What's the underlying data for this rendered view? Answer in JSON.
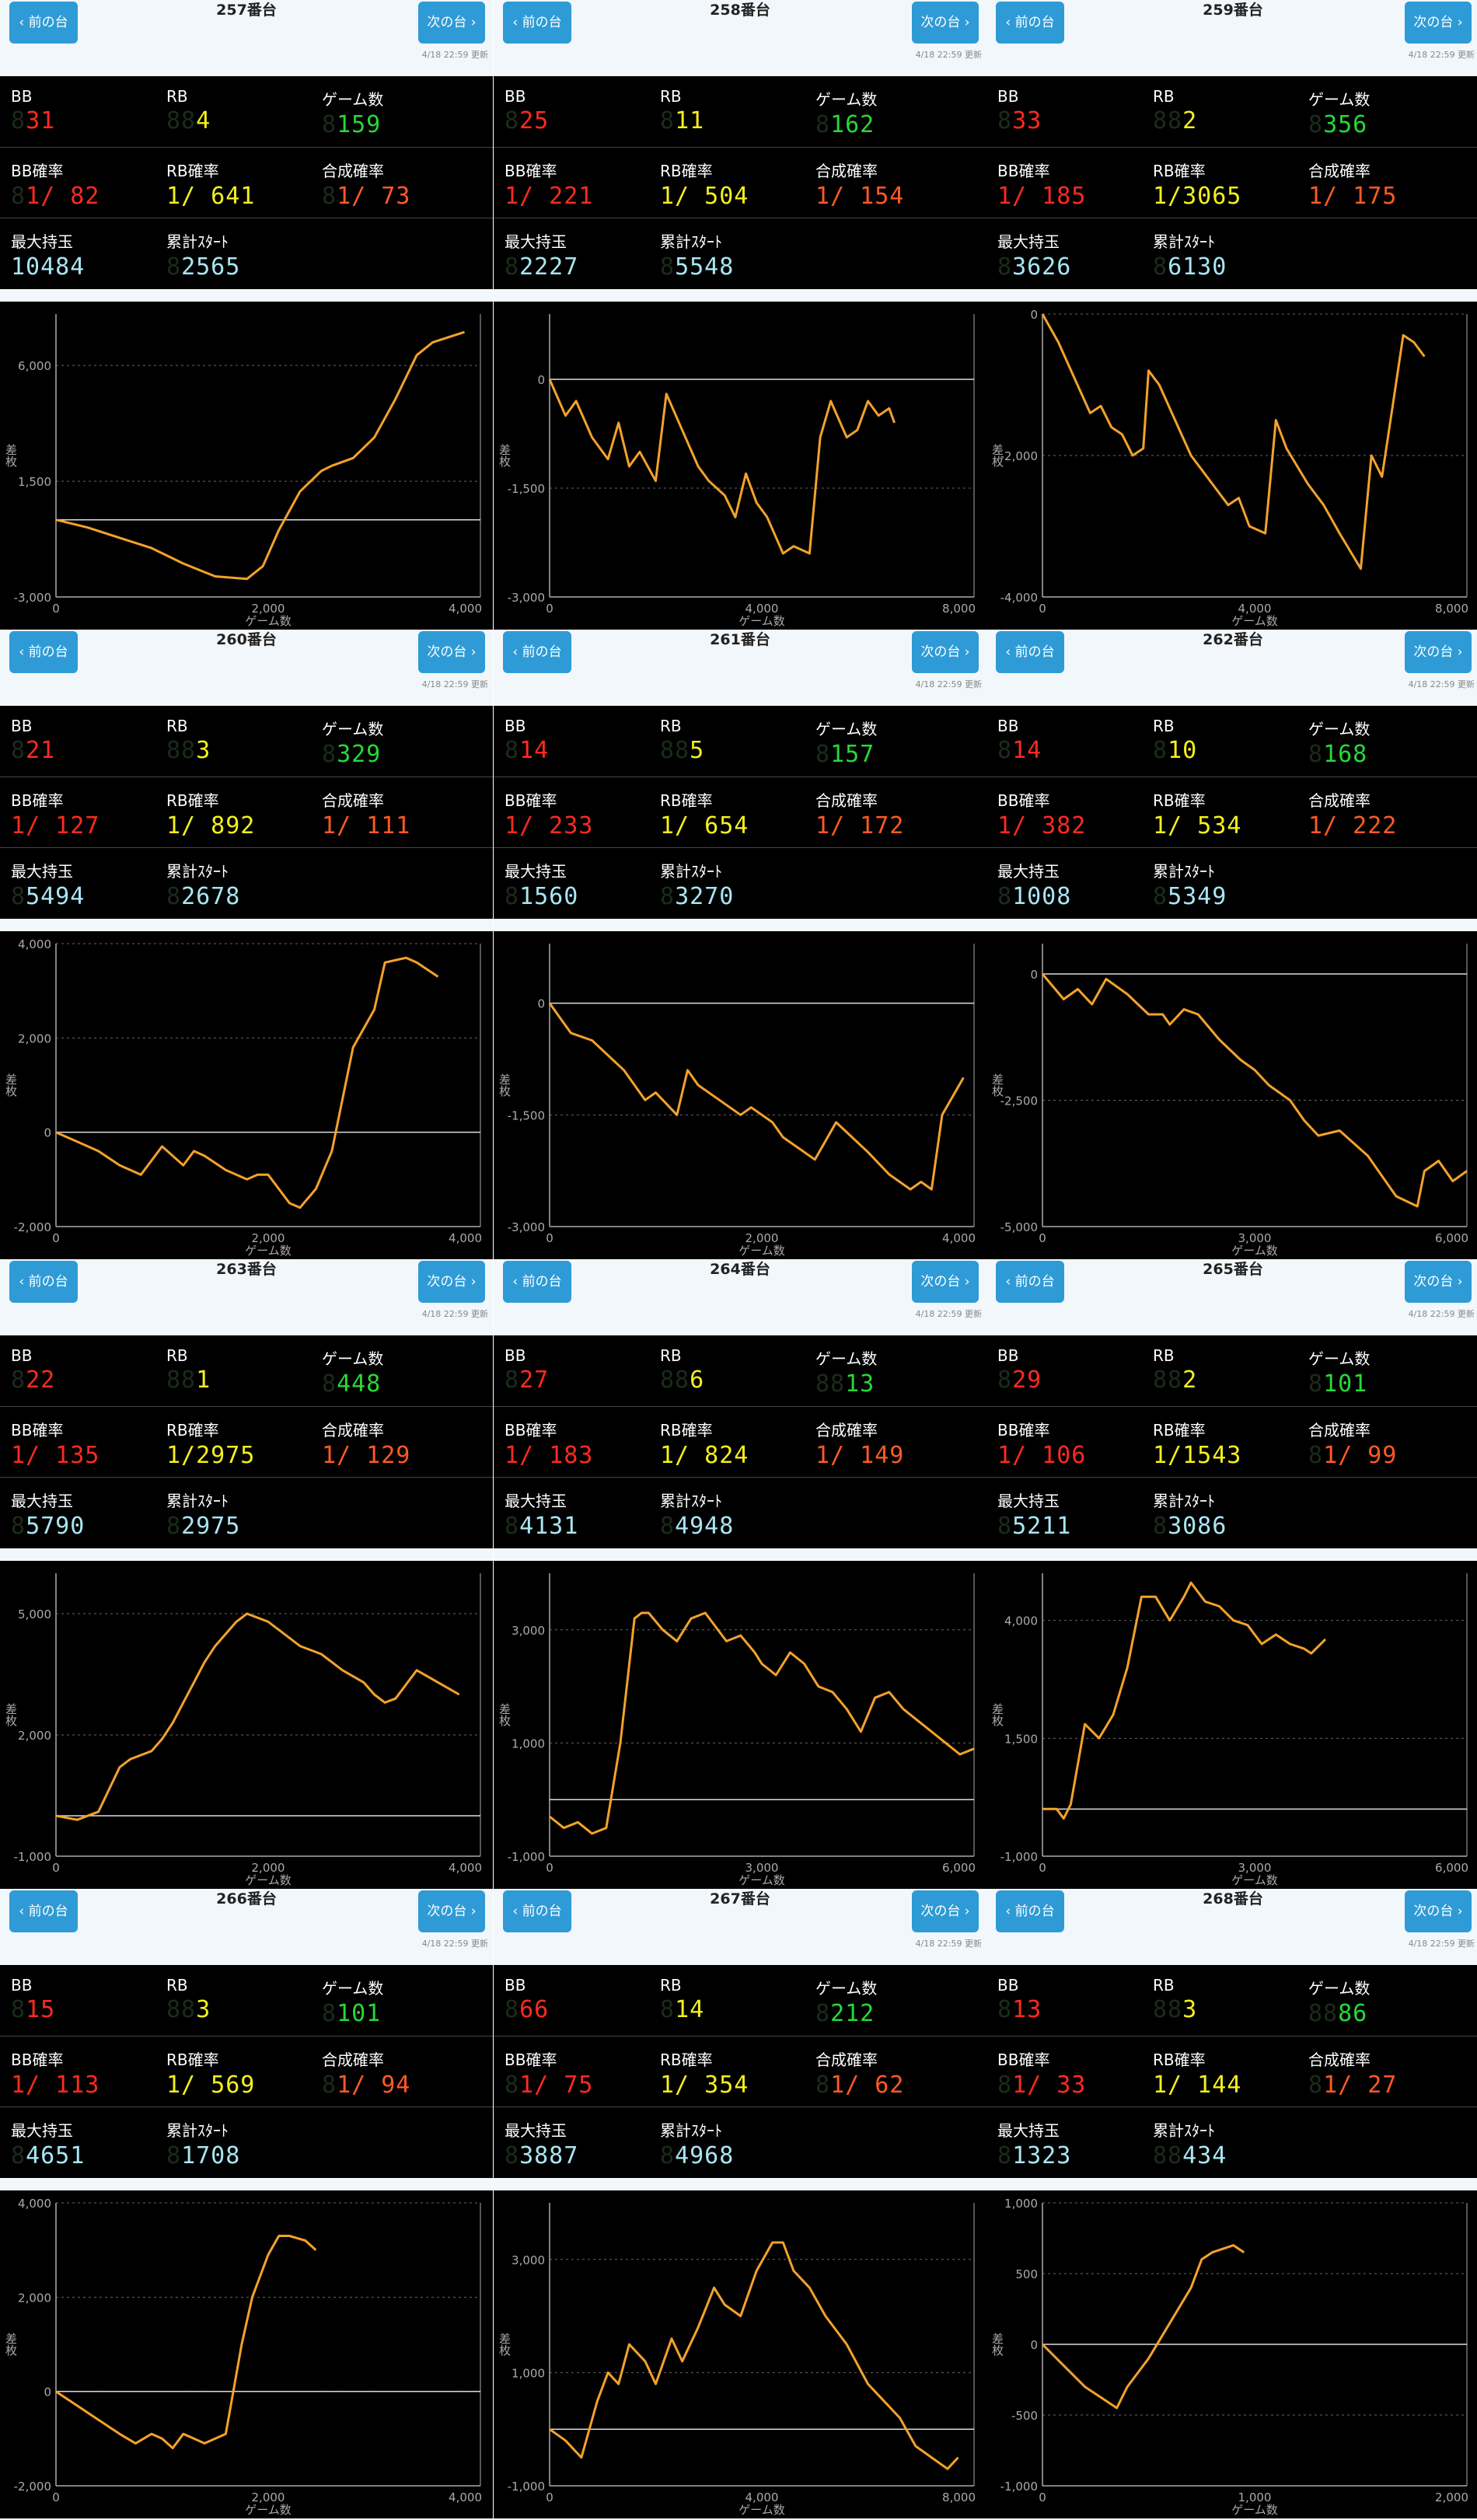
{
  "labels": {
    "prev": "‹ 前の台",
    "next": "次の台 ›",
    "bb": "BB",
    "rb": "RB",
    "games": "ゲーム数",
    "bb_rate": "BB確率",
    "rb_rate": "RB確率",
    "total_rate": "合成確率",
    "max_hold": "最大持玉",
    "total_start": "累計ｽﾀｰﾄ",
    "y_axis": "差枚",
    "x_axis": "ゲーム数"
  },
  "colors": {
    "bb": "#ff2a1f",
    "rb": "#f4f01c",
    "games": "#27d838",
    "total_rate": "#ff5a24",
    "counter": "#a8e6f2",
    "line": "#f3a22b",
    "button": "#2e9bd6"
  },
  "machines": [
    {
      "title": "257番台",
      "updated": "4/18 22:59 更新",
      "bb": "31",
      "rb": "4",
      "games": "159",
      "bb_rate": "1/ 82",
      "rb_rate": "1/ 641",
      "total_rate": "1/ 73",
      "max_hold": "10484",
      "total_start": "2565"
    },
    {
      "title": "258番台",
      "updated": "4/18 22:59 更新",
      "bb": "25",
      "rb": "11",
      "games": "162",
      "bb_rate": "1/ 221",
      "rb_rate": "1/ 504",
      "total_rate": "1/ 154",
      "max_hold": "2227",
      "total_start": "5548"
    },
    {
      "title": "259番台",
      "updated": "4/18 22:59 更新",
      "bb": "33",
      "rb": "2",
      "games": "356",
      "bb_rate": "1/ 185",
      "rb_rate": "1/3065",
      "total_rate": "1/ 175",
      "max_hold": "3626",
      "total_start": "6130"
    },
    {
      "title": "260番台",
      "updated": "4/18 22:59 更新",
      "bb": "21",
      "rb": "3",
      "games": "329",
      "bb_rate": "1/ 127",
      "rb_rate": "1/ 892",
      "total_rate": "1/ 111",
      "max_hold": "5494",
      "total_start": "2678"
    },
    {
      "title": "261番台",
      "updated": "4/18 22:59 更新",
      "bb": "14",
      "rb": "5",
      "games": "157",
      "bb_rate": "1/ 233",
      "rb_rate": "1/ 654",
      "total_rate": "1/ 172",
      "max_hold": "1560",
      "total_start": "3270"
    },
    {
      "title": "262番台",
      "updated": "4/18 22:59 更新",
      "bb": "14",
      "rb": "10",
      "games": "168",
      "bb_rate": "1/ 382",
      "rb_rate": "1/ 534",
      "total_rate": "1/ 222",
      "max_hold": "1008",
      "total_start": "5349"
    },
    {
      "title": "263番台",
      "updated": "4/18 22:59 更新",
      "bb": "22",
      "rb": "1",
      "games": "448",
      "bb_rate": "1/ 135",
      "rb_rate": "1/2975",
      "total_rate": "1/ 129",
      "max_hold": "5790",
      "total_start": "2975"
    },
    {
      "title": "264番台",
      "updated": "4/18 22:59 更新",
      "bb": "27",
      "rb": "6",
      "games": "13",
      "bb_rate": "1/ 183",
      "rb_rate": "1/ 824",
      "total_rate": "1/ 149",
      "max_hold": "4131",
      "total_start": "4948"
    },
    {
      "title": "265番台",
      "updated": "4/18 22:59 更新",
      "bb": "29",
      "rb": "2",
      "games": "101",
      "bb_rate": "1/ 106",
      "rb_rate": "1/1543",
      "total_rate": "1/ 99",
      "max_hold": "5211",
      "total_start": "3086"
    },
    {
      "title": "266番台",
      "updated": "4/18 22:59 更新",
      "bb": "15",
      "rb": "3",
      "games": "101",
      "bb_rate": "1/ 113",
      "rb_rate": "1/ 569",
      "total_rate": "1/ 94",
      "max_hold": "4651",
      "total_start": "1708"
    },
    {
      "title": "267番台",
      "updated": "4/18 22:59 更新",
      "bb": "66",
      "rb": "14",
      "games": "212",
      "bb_rate": "1/ 75",
      "rb_rate": "1/ 354",
      "total_rate": "1/ 62",
      "max_hold": "3887",
      "total_start": "4968"
    },
    {
      "title": "268番台",
      "updated": "4/18 22:59 更新",
      "bb": "13",
      "rb": "3",
      "games": "86",
      "bb_rate": "1/ 33",
      "rb_rate": "1/ 144",
      "total_rate": "1/ 27",
      "max_hold": "1323",
      "total_start": "434"
    }
  ],
  "chart_data": [
    {
      "type": "line",
      "xlim": [
        0,
        4000
      ],
      "ylim": [
        -3000,
        8000
      ],
      "xticks": [
        0,
        2000,
        4000
      ],
      "yticks": [
        -3000,
        1500,
        6000
      ],
      "x": [
        0,
        300,
        600,
        900,
        1200,
        1500,
        1800,
        1950,
        2100,
        2300,
        2500,
        2600,
        2800,
        3000,
        3200,
        3400,
        3550,
        3700,
        3850
      ],
      "y": [
        0,
        -300,
        -700,
        -1100,
        -1700,
        -2200,
        -2300,
        -1800,
        -400,
        1100,
        1900,
        2100,
        2400,
        3200,
        4700,
        6400,
        6900,
        7100,
        7300
      ]
    },
    {
      "type": "line",
      "xlim": [
        0,
        8000
      ],
      "ylim": [
        -3000,
        900
      ],
      "xticks": [
        0,
        4000,
        8000
      ],
      "yticks": [
        -3000,
        -1500,
        0
      ],
      "x": [
        0,
        300,
        500,
        800,
        1100,
        1300,
        1500,
        1700,
        2000,
        2200,
        2500,
        2800,
        3000,
        3300,
        3500,
        3700,
        3900,
        4100,
        4400,
        4600,
        4900,
        5100,
        5300,
        5600,
        5800,
        6000,
        6200,
        6400,
        6500
      ],
      "y": [
        0,
        -500,
        -300,
        -800,
        -1100,
        -600,
        -1200,
        -1000,
        -1400,
        -200,
        -700,
        -1200,
        -1400,
        -1600,
        -1900,
        -1300,
        -1700,
        -1900,
        -2400,
        -2300,
        -2400,
        -800,
        -300,
        -800,
        -700,
        -300,
        -500,
        -400,
        -600
      ]
    },
    {
      "type": "line",
      "xlim": [
        0,
        8000
      ],
      "ylim": [
        -4000,
        0
      ],
      "xticks": [
        0,
        4000,
        8000
      ],
      "yticks": [
        -4000,
        -2000,
        0
      ],
      "x": [
        0,
        300,
        600,
        900,
        1100,
        1300,
        1500,
        1700,
        1900,
        2000,
        2200,
        2500,
        2800,
        3000,
        3200,
        3500,
        3700,
        3900,
        4200,
        4400,
        4600,
        5000,
        5300,
        5600,
        6000,
        6200,
        6400,
        6600,
        6800,
        7000,
        7200
      ],
      "y": [
        0,
        -400,
        -900,
        -1400,
        -1300,
        -1600,
        -1700,
        -2000,
        -1900,
        -800,
        -1000,
        -1500,
        -2000,
        -2200,
        -2400,
        -2700,
        -2600,
        -3000,
        -3100,
        -1500,
        -1900,
        -2400,
        -2700,
        -3100,
        -3600,
        -2000,
        -2300,
        -1300,
        -300,
        -400,
        -600
      ]
    },
    {
      "type": "line",
      "xlim": [
        0,
        4000
      ],
      "ylim": [
        -2000,
        4000
      ],
      "xticks": [
        0,
        2000,
        4000
      ],
      "yticks": [
        -2000,
        0,
        2000,
        4000
      ],
      "x": [
        0,
        200,
        400,
        600,
        800,
        900,
        1000,
        1200,
        1300,
        1400,
        1600,
        1800,
        1900,
        2000,
        2200,
        2300,
        2450,
        2600,
        2800,
        3000,
        3100,
        3300,
        3400,
        3600
      ],
      "y": [
        0,
        -200,
        -400,
        -700,
        -900,
        -600,
        -300,
        -700,
        -400,
        -500,
        -800,
        -1000,
        -900,
        -900,
        -1500,
        -1600,
        -1200,
        -400,
        1800,
        2600,
        3600,
        3700,
        3600,
        3300
      ]
    },
    {
      "type": "line",
      "xlim": [
        0,
        4000
      ],
      "ylim": [
        -3000,
        800
      ],
      "xticks": [
        0,
        2000,
        4000
      ],
      "yticks": [
        -3000,
        -1500,
        0
      ],
      "x": [
        0,
        200,
        400,
        700,
        900,
        1000,
        1200,
        1300,
        1400,
        1600,
        1800,
        1900,
        2100,
        2200,
        2300,
        2500,
        2700,
        3000,
        3200,
        3400,
        3500,
        3600,
        3700,
        3900
      ],
      "y": [
        0,
        -400,
        -500,
        -900,
        -1300,
        -1200,
        -1500,
        -900,
        -1100,
        -1300,
        -1500,
        -1400,
        -1600,
        -1800,
        -1900,
        -2100,
        -1600,
        -2000,
        -2300,
        -2500,
        -2400,
        -2500,
        -1500,
        -1000
      ]
    },
    {
      "type": "line",
      "xlim": [
        0,
        6000
      ],
      "ylim": [
        -5000,
        600
      ],
      "xticks": [
        0,
        3000,
        6000
      ],
      "yticks": [
        -5000,
        -2500,
        0
      ],
      "x": [
        0,
        300,
        500,
        700,
        900,
        1000,
        1200,
        1500,
        1700,
        1800,
        2000,
        2200,
        2500,
        2800,
        3000,
        3200,
        3500,
        3700,
        3900,
        4200,
        4600,
        5000,
        5300,
        5400,
        5600,
        5800,
        6000
      ],
      "y": [
        0,
        -500,
        -300,
        -600,
        -100,
        -200,
        -400,
        -800,
        -800,
        -1000,
        -700,
        -800,
        -1300,
        -1700,
        -1900,
        -2200,
        -2500,
        -2900,
        -3200,
        -3100,
        -3600,
        -4400,
        -4600,
        -3900,
        -3700,
        -4100,
        -3900
      ]
    },
    {
      "type": "line",
      "xlim": [
        0,
        4000
      ],
      "ylim": [
        -1000,
        6000
      ],
      "xticks": [
        0,
        2000,
        4000
      ],
      "yticks": [
        -1000,
        2000,
        5000
      ],
      "x": [
        0,
        200,
        400,
        600,
        700,
        800,
        900,
        1000,
        1100,
        1200,
        1300,
        1400,
        1500,
        1600,
        1700,
        1800,
        1900,
        2000,
        2100,
        2200,
        2300,
        2500,
        2700,
        2900,
        3000,
        3100,
        3200,
        3400,
        3600,
        3800
      ],
      "y": [
        0,
        -100,
        100,
        1200,
        1400,
        1500,
        1600,
        1900,
        2300,
        2800,
        3300,
        3800,
        4200,
        4500,
        4800,
        5000,
        4900,
        4800,
        4600,
        4400,
        4200,
        4000,
        3600,
        3300,
        3000,
        2800,
        2900,
        3600,
        3300,
        3000
      ]
    },
    {
      "type": "line",
      "xlim": [
        0,
        6000
      ],
      "ylim": [
        -1000,
        4000
      ],
      "xticks": [
        0,
        3000,
        6000
      ],
      "yticks": [
        -1000,
        1000,
        3000
      ],
      "x": [
        0,
        200,
        400,
        600,
        800,
        1000,
        1200,
        1300,
        1400,
        1600,
        1800,
        2000,
        2200,
        2500,
        2700,
        2900,
        3000,
        3200,
        3400,
        3600,
        3800,
        4000,
        4200,
        4400,
        4600,
        4800,
        5000,
        5200,
        5400,
        5600,
        5800,
        6000
      ],
      "y": [
        -300,
        -500,
        -400,
        -600,
        -500,
        1000,
        3200,
        3300,
        3300,
        3000,
        2800,
        3200,
        3300,
        2800,
        2900,
        2600,
        2400,
        2200,
        2600,
        2400,
        2000,
        1900,
        1600,
        1200,
        1800,
        1900,
        1600,
        1400,
        1200,
        1000,
        800,
        900
      ]
    },
    {
      "type": "line",
      "xlim": [
        0,
        6000
      ],
      "ylim": [
        -1000,
        5000
      ],
      "xticks": [
        0,
        3000,
        6000
      ],
      "yticks": [
        -1000,
        1500,
        4000
      ],
      "x": [
        0,
        200,
        300,
        400,
        600,
        800,
        1000,
        1200,
        1400,
        1600,
        1800,
        2000,
        2100,
        2300,
        2500,
        2700,
        2900,
        3100,
        3300,
        3500,
        3700,
        3800,
        4000
      ],
      "y": [
        0,
        0,
        -200,
        100,
        1800,
        1500,
        2000,
        3000,
        4500,
        4500,
        4000,
        4500,
        4800,
        4400,
        4300,
        4000,
        3900,
        3500,
        3700,
        3500,
        3400,
        3300,
        3600
      ]
    },
    {
      "type": "line",
      "xlim": [
        0,
        4000
      ],
      "ylim": [
        -2000,
        4000
      ],
      "xticks": [
        0,
        2000,
        4000
      ],
      "yticks": [
        -2000,
        0,
        2000,
        4000
      ],
      "x": [
        0,
        200,
        400,
        600,
        750,
        900,
        1000,
        1100,
        1200,
        1300,
        1400,
        1600,
        1750,
        1850,
        2000,
        2100,
        2200,
        2350,
        2450
      ],
      "y": [
        0,
        -300,
        -600,
        -900,
        -1100,
        -900,
        -1000,
        -1200,
        -900,
        -1000,
        -1100,
        -900,
        1000,
        2000,
        2900,
        3300,
        3300,
        3200,
        3000
      ]
    },
    {
      "type": "line",
      "xlim": [
        0,
        8000
      ],
      "ylim": [
        -1000,
        4000
      ],
      "xticks": [
        0,
        4000,
        8000
      ],
      "yticks": [
        -1000,
        1000,
        3000
      ],
      "x": [
        0,
        300,
        600,
        900,
        1100,
        1300,
        1500,
        1800,
        2000,
        2300,
        2500,
        2800,
        3100,
        3300,
        3600,
        3900,
        4200,
        4400,
        4600,
        4900,
        5200,
        5600,
        6000,
        6300,
        6600,
        6900,
        7200,
        7500,
        7700
      ],
      "y": [
        0,
        -200,
        -500,
        500,
        1000,
        800,
        1500,
        1200,
        800,
        1600,
        1200,
        1800,
        2500,
        2200,
        2000,
        2800,
        3300,
        3300,
        2800,
        2500,
        2000,
        1500,
        800,
        500,
        200,
        -300,
        -500,
        -700,
        -500
      ]
    },
    {
      "type": "line",
      "xlim": [
        0,
        2000
      ],
      "ylim": [
        -1000,
        1000
      ],
      "xticks": [
        0,
        1000,
        2000
      ],
      "yticks": [
        -1000,
        -500,
        0,
        500,
        1000
      ],
      "x": [
        0,
        100,
        200,
        300,
        350,
        400,
        500,
        600,
        700,
        750,
        800,
        900,
        950
      ],
      "y": [
        0,
        -150,
        -300,
        -400,
        -450,
        -300,
        -100,
        150,
        400,
        600,
        650,
        700,
        650
      ]
    }
  ]
}
